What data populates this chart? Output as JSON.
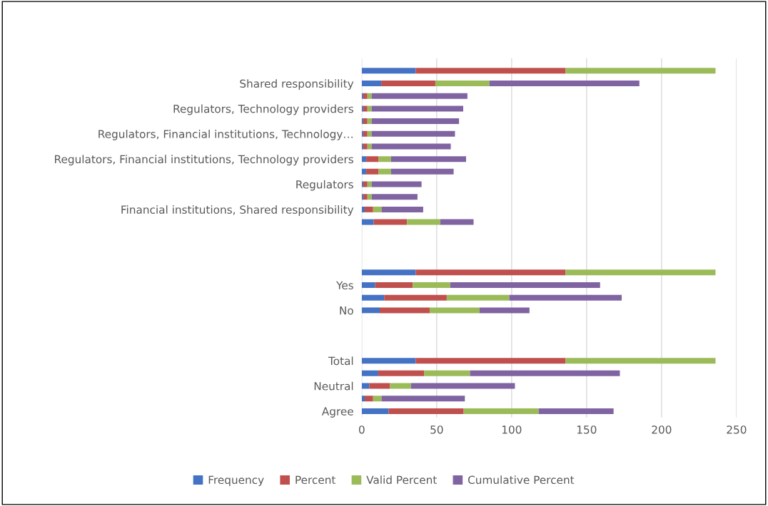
{
  "chart_data": {
    "type": "bar",
    "orientation": "horizontal",
    "stacked": true,
    "categories": [
      null,
      "Shared responsibility",
      null,
      "Regulators, Technology providers",
      null,
      "Regulators, Financial institutions, Technology…",
      null,
      "Regulators, Financial institutions, Technology providers",
      null,
      "Regulators",
      null,
      "Financial institutions, Shared responsibility",
      null,
      null,
      null,
      null,
      null,
      "Yes",
      null,
      "No",
      null,
      null,
      null,
      "Total",
      null,
      "Neutral",
      null,
      "Agree"
    ],
    "series": [
      {
        "name": "Frequency",
        "color": "#4472c4",
        "values": [
          36,
          13,
          1,
          1,
          1,
          1,
          1,
          3,
          3,
          1,
          1,
          2,
          8,
          null,
          null,
          null,
          36,
          9,
          15,
          12,
          null,
          null,
          null,
          36,
          11,
          5,
          2,
          18
        ]
      },
      {
        "name": "Percent",
        "color": "#c0504d",
        "values": [
          100,
          36.1,
          2.8,
          2.8,
          2.8,
          2.8,
          2.8,
          8.3,
          8.3,
          2.8,
          2.8,
          5.6,
          22.2,
          null,
          null,
          null,
          100,
          25,
          41.7,
          33.3,
          null,
          null,
          null,
          100,
          30.6,
          13.9,
          5.6,
          50
        ]
      },
      {
        "name": "Valid Percent",
        "color": "#9bbb59",
        "values": [
          100,
          36.1,
          2.8,
          2.8,
          2.8,
          2.8,
          2.8,
          8.3,
          8.3,
          2.8,
          2.8,
          5.6,
          22.2,
          null,
          null,
          null,
          100,
          25,
          41.7,
          33.3,
          null,
          null,
          null,
          100,
          30.6,
          13.9,
          5.6,
          50
        ]
      },
      {
        "name": "Cumulative Percent",
        "color": "#8064a2",
        "values": [
          null,
          100,
          63.9,
          61.1,
          58.3,
          55.6,
          52.8,
          50,
          41.7,
          33.3,
          30.6,
          27.8,
          22.2,
          null,
          null,
          null,
          null,
          100,
          75,
          33.3,
          null,
          null,
          null,
          null,
          100,
          69.4,
          55.6,
          50
        ]
      }
    ],
    "xlim": [
      0,
      250
    ],
    "xticks": [
      0,
      50,
      100,
      150,
      200,
      250
    ],
    "grid": "x",
    "legend": "bottom"
  }
}
